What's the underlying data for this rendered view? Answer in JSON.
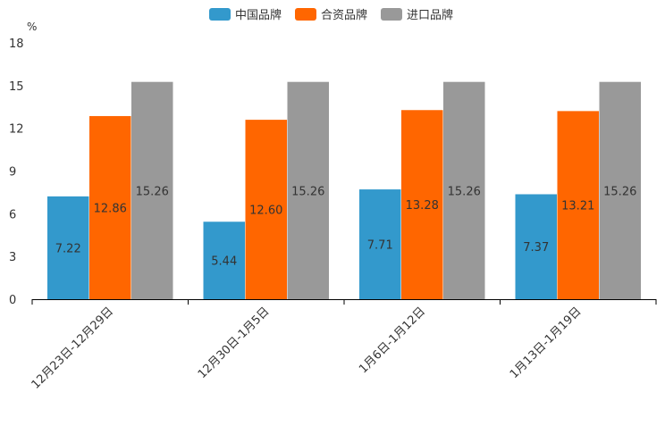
{
  "chart_data": {
    "type": "bar",
    "unit": "%",
    "categories": [
      "12月23日-12月29日",
      "12月30日-1月5日",
      "1月6日-1月12日",
      "1月13日-1月19日"
    ],
    "series": [
      {
        "name": "中国品牌",
        "color": "#3399cc",
        "values": [
          7.22,
          5.44,
          7.71,
          7.37
        ]
      },
      {
        "name": "合资品牌",
        "color": "#ff6600",
        "values": [
          12.86,
          12.6,
          13.28,
          13.21
        ]
      },
      {
        "name": "进口品牌",
        "color": "#999999",
        "values": [
          15.26,
          15.26,
          15.26,
          15.26
        ]
      }
    ],
    "yticks": [
      "0",
      "3",
      "6",
      "9",
      "12",
      "15",
      "18"
    ],
    "ylim": [
      0,
      18
    ],
    "legend_position": "top-center",
    "data_labels": [
      [
        "7.22",
        "5.44",
        "7.71",
        "7.37"
      ],
      [
        "12.86",
        "12.60",
        "13.28",
        "13.21"
      ],
      [
        "15.26",
        "15.26",
        "15.26",
        "15.26"
      ]
    ]
  }
}
